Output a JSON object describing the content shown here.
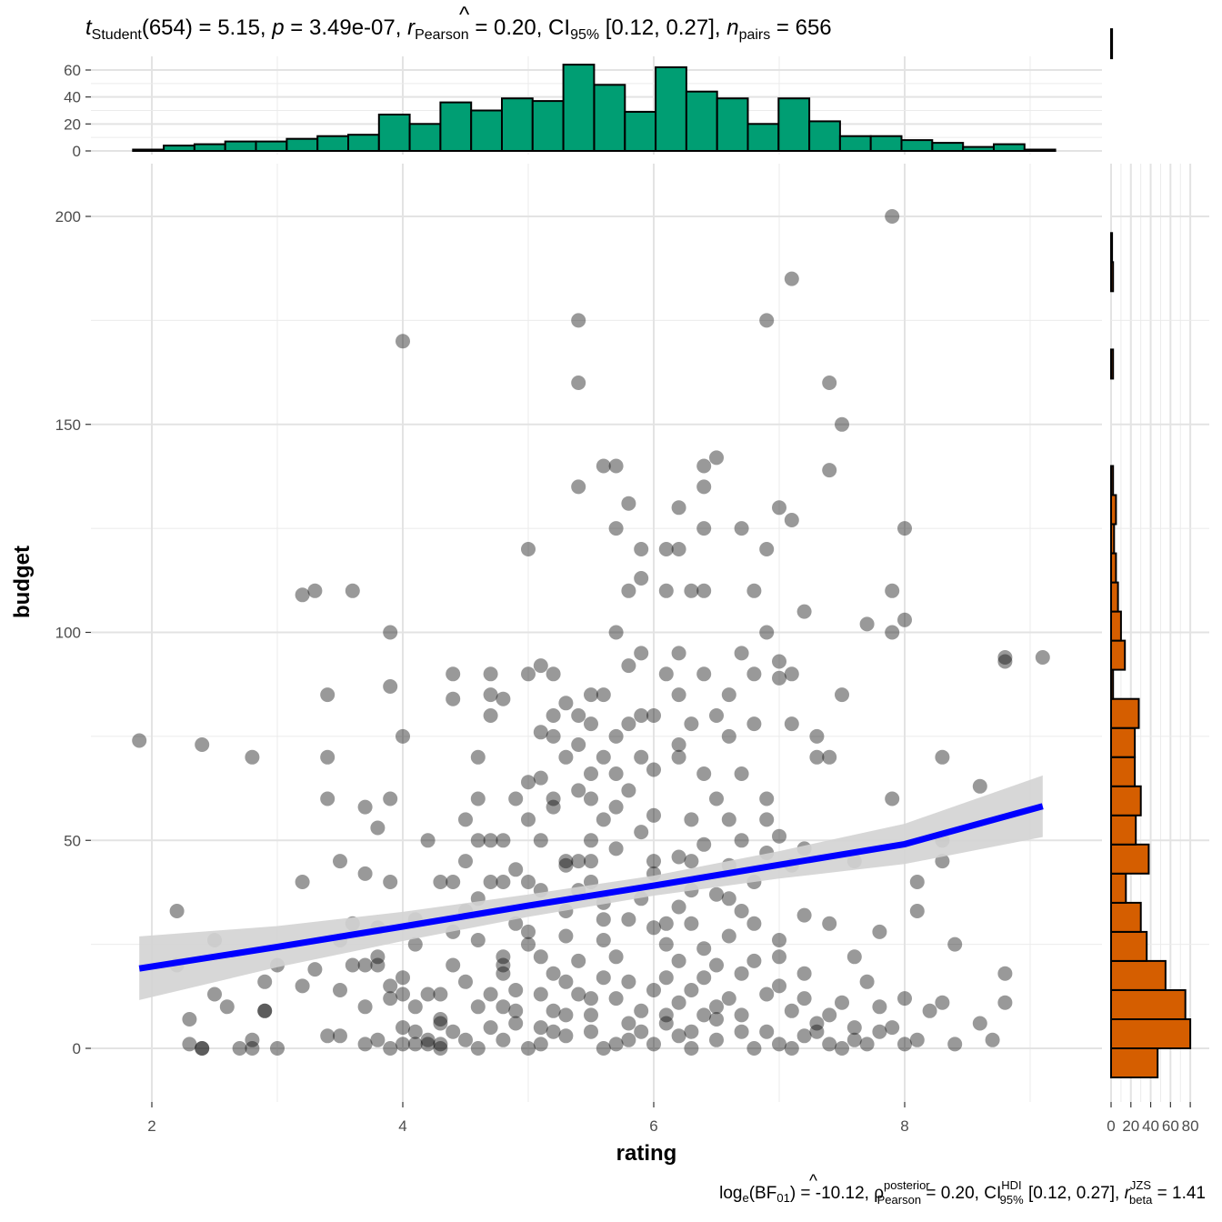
{
  "chart_data": {
    "type": "scatter",
    "title": {
      "t_symbol": "t",
      "t_sub": "Student",
      "t_value": "(654) = 5.15, ",
      "p_symbol": "p",
      "p_value": " = 3.49e-07, ",
      "r_hat": "^",
      "r_symbol": "r",
      "r_sub": "Pearson",
      "r_value": " = 0.20, CI",
      "ci_sub": "95%",
      "ci_value": " [0.12, 0.27], ",
      "n_symbol": "n",
      "n_sub": "pairs",
      "n_value": " = 656"
    },
    "caption": {
      "log_text": "log",
      "log_sub": "e",
      "bf_open": "(BF",
      "bf_sub": "01",
      "bf_value": ") = -10.12, ",
      "rho_hat": "^",
      "rho_symbol": "ρ",
      "rho_sup": "posterior",
      "rho_sub": "Pearson",
      "rho_value": " = 0.20, CI",
      "hdi_sup": "HDI",
      "hdi_sub": "95%",
      "hdi_value": " [0.12, 0.27], ",
      "r_symbol": "r",
      "r_sup": "JZS",
      "r_sub": "beta",
      "r_value": " = 1.41"
    },
    "xlabel": "rating",
    "ylabel": "budget",
    "xlim": [
      1.55,
      9.45
    ],
    "ylim": [
      -12,
      216
    ],
    "x_ticks": [
      2,
      4,
      6,
      8
    ],
    "y_ticks": [
      0,
      50,
      100,
      150,
      200
    ],
    "grid": true,
    "point_color": "#000000",
    "point_alpha": 0.4,
    "regression": {
      "color": "#0000ff",
      "band_color": "#d3d3d3",
      "x": [
        1.9,
        3.0,
        4.0,
        5.0,
        6.0,
        7.0,
        8.0,
        9.1
      ],
      "y": [
        19.2,
        24.4,
        29.3,
        34.3,
        39.1,
        44.1,
        49.1,
        58.2
      ],
      "lower": [
        11.6,
        19.5,
        25.8,
        31.6,
        36.7,
        40.8,
        44.3,
        50.8
      ],
      "upper": [
        26.9,
        29.4,
        32.8,
        37.0,
        41.5,
        47.4,
        54.0,
        65.6
      ]
    },
    "points": [
      [
        1.9,
        74
      ],
      [
        2.2,
        33
      ],
      [
        2.2,
        20
      ],
      [
        2.3,
        1
      ],
      [
        2.3,
        7
      ],
      [
        2.4,
        0
      ],
      [
        2.4,
        0
      ],
      [
        2.4,
        73
      ],
      [
        2.5,
        13
      ],
      [
        2.5,
        26
      ],
      [
        2.6,
        10
      ],
      [
        2.7,
        0
      ],
      [
        2.8,
        0
      ],
      [
        2.8,
        70
      ],
      [
        2.8,
        2
      ],
      [
        2.9,
        9
      ],
      [
        2.9,
        9
      ],
      [
        2.9,
        16
      ],
      [
        3.0,
        20
      ],
      [
        3.0,
        0
      ],
      [
        3.2,
        40
      ],
      [
        3.2,
        15
      ],
      [
        3.2,
        109
      ],
      [
        3.3,
        19
      ],
      [
        3.3,
        110
      ],
      [
        3.4,
        85
      ],
      [
        3.4,
        3
      ],
      [
        3.4,
        70
      ],
      [
        3.4,
        60
      ],
      [
        3.5,
        45
      ],
      [
        3.5,
        26
      ],
      [
        3.5,
        3
      ],
      [
        3.5,
        14
      ],
      [
        3.6,
        30
      ],
      [
        3.6,
        20
      ],
      [
        3.6,
        110
      ],
      [
        3.7,
        1
      ],
      [
        3.7,
        42
      ],
      [
        3.7,
        58
      ],
      [
        3.7,
        20
      ],
      [
        3.8,
        53
      ],
      [
        3.8,
        20
      ],
      [
        3.8,
        29
      ],
      [
        3.8,
        22
      ],
      [
        3.8,
        2
      ],
      [
        3.9,
        40
      ],
      [
        3.9,
        60
      ],
      [
        3.9,
        100
      ],
      [
        3.9,
        87
      ],
      [
        3.9,
        12
      ],
      [
        3.9,
        0
      ],
      [
        4.0,
        170
      ],
      [
        4.0,
        75
      ],
      [
        4.0,
        13
      ],
      [
        4.0,
        1
      ],
      [
        4.0,
        5
      ],
      [
        4.1,
        25
      ],
      [
        4.1,
        10
      ],
      [
        4.1,
        1
      ],
      [
        4.2,
        50
      ],
      [
        4.2,
        1
      ],
      [
        4.3,
        6
      ],
      [
        4.3,
        13
      ],
      [
        4.3,
        0
      ],
      [
        4.4,
        40
      ],
      [
        4.4,
        90
      ],
      [
        4.4,
        84
      ],
      [
        4.5,
        45
      ],
      [
        4.5,
        55
      ],
      [
        4.6,
        70
      ],
      [
        4.6,
        50
      ],
      [
        4.6,
        60
      ],
      [
        4.7,
        90
      ],
      [
        4.7,
        85
      ],
      [
        4.7,
        80
      ],
      [
        4.7,
        40
      ],
      [
        4.8,
        84
      ],
      [
        4.8,
        50
      ],
      [
        4.8,
        40
      ],
      [
        4.8,
        20
      ],
      [
        4.9,
        60
      ],
      [
        4.9,
        30
      ],
      [
        5.0,
        120
      ],
      [
        5.0,
        90
      ],
      [
        5.0,
        40
      ],
      [
        5.0,
        55
      ],
      [
        5.1,
        92
      ],
      [
        5.1,
        76
      ],
      [
        5.1,
        65
      ],
      [
        5.1,
        50
      ],
      [
        5.2,
        90
      ],
      [
        5.2,
        80
      ],
      [
        5.2,
        60
      ],
      [
        5.2,
        75
      ],
      [
        5.3,
        83
      ],
      [
        5.3,
        70
      ],
      [
        5.3,
        45
      ],
      [
        5.4,
        175
      ],
      [
        5.4,
        160
      ],
      [
        5.4,
        135
      ],
      [
        5.4,
        80
      ],
      [
        5.4,
        73
      ],
      [
        5.4,
        45
      ],
      [
        5.4,
        38
      ],
      [
        5.5,
        85
      ],
      [
        5.5,
        78
      ],
      [
        5.5,
        60
      ],
      [
        5.5,
        45
      ],
      [
        5.6,
        140
      ],
      [
        5.6,
        85
      ],
      [
        5.6,
        55
      ],
      [
        5.6,
        35
      ],
      [
        5.7,
        140
      ],
      [
        5.7,
        125
      ],
      [
        5.7,
        100
      ],
      [
        5.7,
        66
      ],
      [
        5.8,
        131
      ],
      [
        5.8,
        110
      ],
      [
        5.8,
        92
      ],
      [
        5.8,
        78
      ],
      [
        5.9,
        120
      ],
      [
        5.9,
        113
      ],
      [
        5.9,
        95
      ],
      [
        5.9,
        70
      ],
      [
        6.0,
        80
      ],
      [
        6.0,
        56
      ],
      [
        6.0,
        45
      ],
      [
        6.1,
        120
      ],
      [
        6.1,
        110
      ],
      [
        6.1,
        90
      ],
      [
        6.2,
        130
      ],
      [
        6.2,
        120
      ],
      [
        6.2,
        95
      ],
      [
        6.2,
        85
      ],
      [
        6.2,
        70
      ],
      [
        6.3,
        110
      ],
      [
        6.3,
        78
      ],
      [
        6.3,
        55
      ],
      [
        6.3,
        45
      ],
      [
        6.4,
        140
      ],
      [
        6.4,
        135
      ],
      [
        6.4,
        125
      ],
      [
        6.4,
        110
      ],
      [
        6.4,
        90
      ],
      [
        6.5,
        142
      ],
      [
        6.5,
        80
      ],
      [
        6.5,
        60
      ],
      [
        6.6,
        85
      ],
      [
        6.6,
        75
      ],
      [
        6.6,
        55
      ],
      [
        6.7,
        125
      ],
      [
        6.7,
        95
      ],
      [
        6.7,
        66
      ],
      [
        6.7,
        50
      ],
      [
        6.8,
        110
      ],
      [
        6.8,
        90
      ],
      [
        6.8,
        78
      ],
      [
        6.9,
        175
      ],
      [
        6.9,
        120
      ],
      [
        6.9,
        100
      ],
      [
        6.9,
        60
      ],
      [
        7.0,
        130
      ],
      [
        7.0,
        93
      ],
      [
        7.0,
        89
      ],
      [
        7.0,
        51
      ],
      [
        7.1,
        185
      ],
      [
        7.1,
        127
      ],
      [
        7.1,
        90
      ],
      [
        7.1,
        78
      ],
      [
        7.2,
        105
      ],
      [
        7.2,
        48
      ],
      [
        7.3,
        75
      ],
      [
        7.3,
        70
      ],
      [
        7.4,
        139
      ],
      [
        7.4,
        160
      ],
      [
        7.4,
        70
      ],
      [
        7.5,
        150
      ],
      [
        7.5,
        85
      ],
      [
        7.6,
        45
      ],
      [
        7.7,
        102
      ],
      [
        7.9,
        200
      ],
      [
        7.9,
        110
      ],
      [
        7.9,
        100
      ],
      [
        7.9,
        60
      ],
      [
        8.0,
        125
      ],
      [
        8.0,
        103
      ],
      [
        8.1,
        40
      ],
      [
        8.3,
        70
      ],
      [
        8.3,
        50
      ],
      [
        8.3,
        45
      ],
      [
        8.6,
        63
      ],
      [
        8.8,
        94
      ],
      [
        8.8,
        93
      ],
      [
        9.1,
        94
      ],
      [
        6.9,
        55
      ],
      [
        6.6,
        44
      ],
      [
        6.3,
        38
      ],
      [
        6.0,
        42
      ],
      [
        5.7,
        48
      ],
      [
        5.5,
        50
      ],
      [
        5.3,
        33
      ],
      [
        5.1,
        38
      ],
      [
        4.9,
        43
      ],
      [
        4.7,
        50
      ],
      [
        4.5,
        33
      ],
      [
        4.3,
        40
      ],
      [
        4.1,
        31
      ],
      [
        6.1,
        30
      ],
      [
        6.4,
        24
      ],
      [
        6.7,
        33
      ],
      [
        7.0,
        26
      ],
      [
        7.2,
        18
      ],
      [
        7.4,
        30
      ],
      [
        7.6,
        22
      ],
      [
        7.8,
        28
      ],
      [
        8.1,
        33
      ],
      [
        8.4,
        25
      ],
      [
        8.8,
        18
      ],
      [
        8.8,
        11
      ],
      [
        8.6,
        6
      ],
      [
        8.3,
        11
      ],
      [
        8.0,
        12
      ],
      [
        7.7,
        16
      ],
      [
        7.5,
        11
      ],
      [
        7.3,
        6
      ],
      [
        7.1,
        9
      ],
      [
        6.9,
        4
      ],
      [
        6.7,
        8
      ],
      [
        6.5,
        10
      ],
      [
        6.3,
        14
      ],
      [
        6.1,
        8
      ],
      [
        5.9,
        4
      ],
      [
        5.7,
        12
      ],
      [
        5.5,
        8
      ],
      [
        5.3,
        16
      ],
      [
        5.1,
        13
      ],
      [
        4.9,
        6
      ],
      [
        4.7,
        13
      ],
      [
        4.5,
        16
      ],
      [
        4.3,
        7
      ],
      [
        4.4,
        20
      ],
      [
        4.6,
        26
      ],
      [
        4.8,
        22
      ],
      [
        5.0,
        28
      ],
      [
        5.2,
        18
      ],
      [
        5.4,
        21
      ],
      [
        5.6,
        26
      ],
      [
        5.8,
        16
      ],
      [
        6.0,
        29
      ],
      [
        6.2,
        21
      ],
      [
        6.4,
        17
      ],
      [
        6.6,
        27
      ],
      [
        6.8,
        21
      ],
      [
        7.0,
        15
      ],
      [
        7.2,
        12
      ],
      [
        7.4,
        8
      ],
      [
        7.6,
        2
      ],
      [
        7.8,
        4
      ],
      [
        8.0,
        1
      ],
      [
        8.2,
        9
      ],
      [
        6.5,
        2
      ],
      [
        6.2,
        3
      ],
      [
        6.0,
        1
      ],
      [
        5.8,
        2
      ],
      [
        5.6,
        0
      ],
      [
        5.3,
        3
      ],
      [
        5.1,
        1
      ],
      [
        4.8,
        2
      ],
      [
        4.6,
        0
      ],
      [
        4.4,
        4
      ],
      [
        4.2,
        2
      ],
      [
        4.9,
        14
      ],
      [
        5.2,
        9
      ],
      [
        5.5,
        12
      ],
      [
        5.8,
        6
      ],
      [
        6.1,
        17
      ],
      [
        6.3,
        4
      ],
      [
        6.6,
        12
      ],
      [
        6.8,
        0
      ],
      [
        7.0,
        1
      ],
      [
        7.2,
        3
      ],
      [
        7.4,
        1
      ],
      [
        7.6,
        5
      ],
      [
        7.8,
        10
      ],
      [
        8.1,
        2
      ],
      [
        8.4,
        1
      ],
      [
        8.7,
        2
      ],
      [
        5.0,
        25
      ],
      [
        5.3,
        27
      ],
      [
        5.6,
        31
      ],
      [
        5.9,
        36
      ],
      [
        6.2,
        34
      ],
      [
        6.5,
        37
      ],
      [
        6.8,
        40
      ],
      [
        4.6,
        36
      ],
      [
        4.4,
        28
      ],
      [
        4.2,
        13
      ],
      [
        4.0,
        17
      ],
      [
        3.9,
        15
      ],
      [
        3.7,
        10
      ],
      [
        5.4,
        62
      ],
      [
        5.2,
        58
      ],
      [
        5.0,
        64
      ],
      [
        5.6,
        70
      ],
      [
        5.8,
        62
      ],
      [
        6.0,
        67
      ],
      [
        6.2,
        73
      ],
      [
        6.4,
        66
      ],
      [
        5.7,
        75
      ],
      [
        5.9,
        80
      ],
      [
        6.1,
        25
      ],
      [
        6.3,
        30
      ],
      [
        6.5,
        20
      ],
      [
        6.7,
        18
      ],
      [
        5.5,
        40
      ],
      [
        5.7,
        22
      ],
      [
        5.3,
        44
      ],
      [
        5.1,
        22
      ],
      [
        4.8,
        18
      ],
      [
        4.6,
        10
      ],
      [
        4.7,
        5
      ],
      [
        4.9,
        9
      ],
      [
        5.1,
        5
      ],
      [
        5.3,
        8
      ],
      [
        5.5,
        4
      ],
      [
        5.7,
        1
      ],
      [
        5.9,
        9
      ],
      [
        6.1,
        6
      ],
      [
        6.3,
        0
      ],
      [
        6.5,
        7
      ],
      [
        6.7,
        4
      ],
      [
        6.9,
        13
      ],
      [
        7.1,
        0
      ],
      [
        7.3,
        4
      ],
      [
        7.5,
        0
      ],
      [
        7.7,
        1
      ],
      [
        7.9,
        5
      ],
      [
        6.0,
        14
      ],
      [
        6.2,
        11
      ],
      [
        6.4,
        8
      ],
      [
        5.8,
        31
      ],
      [
        5.6,
        17
      ],
      [
        5.4,
        13
      ],
      [
        5.2,
        4
      ],
      [
        5.0,
        0
      ],
      [
        4.8,
        10
      ],
      [
        4.5,
        2
      ],
      [
        4.3,
        1
      ],
      [
        4.1,
        4
      ],
      [
        6.6,
        36
      ],
      [
        6.8,
        30
      ],
      [
        7.0,
        22
      ],
      [
        7.2,
        32
      ],
      [
        6.9,
        47
      ],
      [
        7.1,
        44
      ],
      [
        6.4,
        49
      ],
      [
        6.2,
        46
      ],
      [
        5.9,
        52
      ],
      [
        5.7,
        58
      ],
      [
        5.5,
        66
      ]
    ],
    "top_histogram": {
      "fill": "#009e73",
      "x_start": 1.85,
      "bin_width": 0.245,
      "counts": [
        1,
        4,
        5,
        7,
        7,
        9,
        11,
        12,
        27,
        20,
        36,
        30,
        39,
        37,
        64,
        49,
        29,
        62,
        44,
        39,
        20,
        39,
        22,
        11,
        11,
        8,
        6,
        3,
        5,
        1
      ]
    },
    "side_histogram": {
      "fill": "#d55e00",
      "y_start": -7,
      "bin_width": 7,
      "x_ticks": [
        0,
        20,
        40,
        60,
        80
      ],
      "x_max": 95,
      "counts": [
        47,
        80,
        75,
        55,
        36,
        30,
        15,
        38,
        25,
        30,
        24,
        24,
        28,
        2,
        14,
        10,
        7,
        5,
        3,
        5,
        2,
        0,
        0,
        0,
        2,
        0,
        0,
        2,
        1,
        0,
        0,
        0,
        0,
        0,
        0,
        1,
        0,
        0,
        0,
        0,
        0,
        1,
        1
      ]
    }
  }
}
